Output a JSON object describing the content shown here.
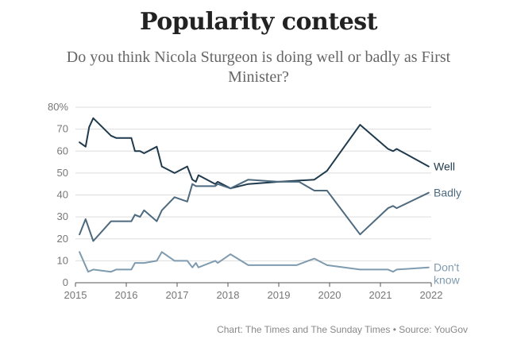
{
  "title": "Popularity contest",
  "subtitle": "Do you think Nicola Sturgeon is doing well or badly as First Minister?",
  "source": "Chart: The Times and The Sunday Times • Source: YouGov",
  "colors": {
    "well": "#1f3a4d",
    "badly": "#4e6a7f",
    "dont_know": "#7f9bb0",
    "grid": "#dddddd",
    "axis": "#555555"
  },
  "chart_data": {
    "type": "line",
    "title": "Popularity contest",
    "subtitle": "Do you think Nicola Sturgeon is doing well or badly as First Minister?",
    "xlabel": "",
    "ylabel": "",
    "xlim": [
      2015,
      2022
    ],
    "ylim": [
      0,
      80
    ],
    "x_ticks": [
      2015,
      2016,
      2017,
      2018,
      2019,
      2020,
      2021,
      2022
    ],
    "x_tick_labels": [
      "2015",
      "2016",
      "2017",
      "2018",
      "2019",
      "2020",
      "2021",
      "2022"
    ],
    "y_ticks": [
      0,
      10,
      20,
      30,
      40,
      50,
      60,
      70,
      80
    ],
    "y_tick_labels": [
      "0",
      "10",
      "20",
      "30",
      "40",
      "50",
      "60",
      "70",
      "80%"
    ],
    "grid": true,
    "series": [
      {
        "key": "well",
        "name": "Well",
        "label_lines": [
          "Well"
        ],
        "x": [
          2015.08,
          2015.2,
          2015.27,
          2015.35,
          2015.7,
          2015.8,
          2016.1,
          2016.17,
          2016.27,
          2016.35,
          2016.6,
          2016.7,
          2016.95,
          2017.2,
          2017.3,
          2017.37,
          2017.42,
          2017.75,
          2017.8,
          2018.05,
          2018.4,
          2019.0,
          2019.7,
          2019.95,
          2020.6,
          2021.15,
          2021.25,
          2021.32,
          2021.95
        ],
        "values": [
          64,
          62,
          71,
          75,
          67,
          66,
          66,
          60,
          60,
          59,
          62,
          53,
          50,
          53,
          47,
          46,
          49,
          45,
          46,
          43,
          45,
          46,
          47,
          51,
          72,
          61,
          60,
          61,
          53
        ]
      },
      {
        "key": "badly",
        "name": "Badly",
        "label_lines": [
          "Badly"
        ],
        "x": [
          2015.08,
          2015.2,
          2015.35,
          2015.7,
          2016.1,
          2016.17,
          2016.27,
          2016.35,
          2016.6,
          2016.7,
          2016.95,
          2017.2,
          2017.3,
          2017.37,
          2017.75,
          2017.8,
          2018.05,
          2018.4,
          2019.0,
          2019.4,
          2019.7,
          2019.95,
          2020.6,
          2021.15,
          2021.25,
          2021.32,
          2021.95
        ],
        "values": [
          22,
          29,
          19,
          28,
          28,
          31,
          30,
          33,
          28,
          33,
          39,
          37,
          45,
          44,
          44,
          45,
          43,
          47,
          46,
          46,
          42,
          42,
          22,
          34,
          35,
          34,
          41
        ]
      },
      {
        "key": "dont_know",
        "name": "Don't know",
        "label_lines": [
          "Don't",
          "know"
        ],
        "x": [
          2015.08,
          2015.25,
          2015.35,
          2015.7,
          2015.8,
          2016.1,
          2016.17,
          2016.35,
          2016.6,
          2016.7,
          2016.95,
          2017.2,
          2017.3,
          2017.37,
          2017.42,
          2017.75,
          2017.8,
          2018.05,
          2018.4,
          2019.0,
          2019.35,
          2019.7,
          2019.95,
          2020.6,
          2021.15,
          2021.25,
          2021.32,
          2021.95
        ],
        "values": [
          14,
          5,
          6,
          5,
          6,
          6,
          9,
          9,
          10,
          14,
          10,
          10,
          7,
          9,
          7,
          10,
          9,
          13,
          8,
          8,
          8,
          11,
          8,
          6,
          6,
          5,
          6,
          7
        ]
      }
    ]
  }
}
